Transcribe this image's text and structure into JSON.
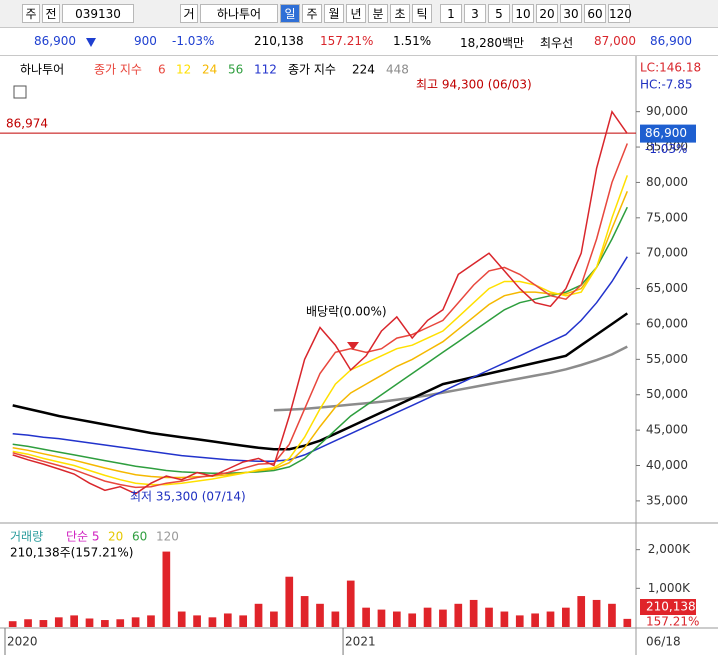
{
  "toolbar": {
    "items": [
      "주",
      "전",
      "039130",
      "거",
      "하나투어",
      "일",
      "주",
      "월",
      "년",
      "분",
      "초",
      "틱",
      "1",
      "3",
      "5",
      "10",
      "20",
      "30",
      "60",
      "120"
    ]
  },
  "quote": {
    "price": "86,900",
    "change": "900",
    "change_pct": "-1.03%",
    "volume": "210,138",
    "volume_ratio": "157.21%",
    "turnover": "1.51%",
    "amount": "18,280백만",
    "best_label": "최우선",
    "ask": "87,000",
    "bid": "86,900"
  },
  "chart_data": [
    {
      "type": "line",
      "categories": [
        "2020",
        null,
        null,
        null,
        null,
        null,
        null,
        null,
        null,
        null,
        null,
        null,
        null,
        null,
        null,
        null,
        null,
        null,
        null,
        null,
        null,
        null,
        "2021",
        null,
        null,
        null,
        null,
        null,
        null,
        null,
        null,
        null,
        null,
        null,
        null,
        null,
        null,
        null,
        null,
        null,
        null
      ],
      "ylim": [
        32300,
        97300
      ],
      "yticks": [
        {
          "value": 35000,
          "label": "35,000"
        },
        {
          "value": 40000,
          "label": "40,000"
        },
        {
          "value": 45000,
          "label": "45,000"
        },
        {
          "value": 50000,
          "label": "50,000"
        },
        {
          "value": 55000,
          "label": "55,000"
        },
        {
          "value": 60000,
          "label": "60,000"
        },
        {
          "value": 65000,
          "label": "65,000"
        },
        {
          "value": 70000,
          "label": "70,000"
        },
        {
          "value": 75000,
          "label": "75,000"
        },
        {
          "value": 80000,
          "label": "80,000"
        },
        {
          "value": 85000,
          "label": "85,000"
        },
        {
          "value": 90000,
          "label": "90,000"
        }
      ],
      "series": [
        {
          "name": "하나투어",
          "color": "#d9262c",
          "values": [
            41500,
            40800,
            40200,
            39500,
            38800,
            37500,
            36500,
            37000,
            36000,
            37500,
            38500,
            38000,
            39000,
            38500,
            39500,
            40500,
            41000,
            40000,
            47000,
            55000,
            59500,
            57000,
            53500,
            55500,
            59000,
            61000,
            58000,
            60500,
            62000,
            67000,
            68500,
            70000,
            67500,
            65000,
            63000,
            62500,
            65000,
            70000,
            82000,
            90000,
            86900
          ]
        },
        {
          "name": "6",
          "prefix": "종가 지수",
          "color": "#e8473d",
          "values": [
            41800,
            41200,
            40600,
            40000,
            39400,
            38600,
            37800,
            37300,
            36900,
            37000,
            37500,
            37800,
            38300,
            38600,
            39000,
            39600,
            40200,
            40300,
            43000,
            48000,
            53000,
            56000,
            56500,
            56000,
            56500,
            58000,
            58500,
            59500,
            60500,
            63000,
            65500,
            67500,
            68000,
            67000,
            65500,
            64000,
            63500,
            65500,
            72000,
            80000,
            85500
          ]
        },
        {
          "name": "12",
          "color": "#ffe000",
          "values": [
            42000,
            41600,
            41000,
            40500,
            40000,
            39300,
            38600,
            38000,
            37500,
            37300,
            37300,
            37500,
            37800,
            38100,
            38500,
            38900,
            39400,
            39700,
            41000,
            44000,
            48000,
            51500,
            53500,
            54500,
            55500,
            56500,
            57000,
            58000,
            59000,
            61000,
            63000,
            65000,
            66000,
            66000,
            65500,
            64500,
            64000,
            64500,
            68000,
            75000,
            81000
          ]
        },
        {
          "name": "24",
          "color": "#f5b800",
          "values": [
            42500,
            42150,
            41650,
            41200,
            40750,
            40200,
            39650,
            39150,
            38700,
            38450,
            38300,
            38300,
            38400,
            38500,
            38700,
            38950,
            39250,
            39500,
            40400,
            42500,
            45500,
            48250,
            50250,
            51500,
            52750,
            54000,
            55000,
            56250,
            57500,
            59250,
            61000,
            62750,
            64000,
            64500,
            64500,
            64250,
            64250,
            65000,
            68000,
            73500,
            78750
          ]
        },
        {
          "name": "56",
          "color": "#2e9e3e",
          "values": [
            43000,
            42700,
            42300,
            41900,
            41500,
            41100,
            40700,
            40300,
            39900,
            39600,
            39300,
            39100,
            39000,
            38900,
            38900,
            39000,
            39100,
            39300,
            39800,
            41000,
            43000,
            45000,
            47000,
            48500,
            50000,
            51500,
            53000,
            54500,
            56000,
            57500,
            59000,
            60500,
            62000,
            63000,
            63500,
            64000,
            64500,
            65500,
            68000,
            72000,
            76500
          ]
        },
        {
          "name": "112",
          "color": "#2233cc",
          "values": [
            44500,
            44300,
            44000,
            43800,
            43500,
            43200,
            42900,
            42600,
            42300,
            42000,
            41700,
            41400,
            41200,
            41000,
            40800,
            40700,
            40600,
            40600,
            40800,
            41500,
            42500,
            43500,
            44500,
            45500,
            46500,
            47500,
            48500,
            49500,
            50500,
            51500,
            52500,
            53500,
            54500,
            55500,
            56500,
            57500,
            58500,
            60500,
            63000,
            66000,
            69500
          ]
        },
        {
          "name": "224",
          "prefix": "종가 지수",
          "color": "#000000",
          "values": [
            48500,
            48000,
            47500,
            47000,
            46600,
            46200,
            45800,
            45400,
            45000,
            44600,
            44300,
            44000,
            43700,
            43400,
            43100,
            42800,
            42500,
            42300,
            42300,
            42800,
            43500,
            44500,
            45500,
            46500,
            47500,
            48500,
            49500,
            50500,
            51500,
            52000,
            52500,
            53000,
            53500,
            54000,
            54500,
            55000,
            55500,
            57000,
            58500,
            60000,
            61500
          ]
        },
        {
          "name": "448",
          "color": "#8c8c8c",
          "values": [
            null,
            null,
            null,
            null,
            null,
            null,
            null,
            null,
            null,
            null,
            null,
            null,
            null,
            null,
            null,
            null,
            null,
            47800,
            47900,
            48000,
            48200,
            48400,
            48600,
            48800,
            49000,
            49300,
            49600,
            49900,
            50300,
            50700,
            51100,
            51500,
            51900,
            52300,
            52700,
            53100,
            53600,
            54200,
            54900,
            55700,
            56800
          ]
        }
      ],
      "annotations": [
        "최고 94,300 (06/03)",
        "최저 35,300 (07/14)",
        "배당락(0.00%)"
      ],
      "ref_line": {
        "value": 86974,
        "label": "86,974"
      },
      "last_price": {
        "value": 86900,
        "label": "86,900"
      },
      "last_change": "-1.03%",
      "axis_notes": [
        "LC:146.18",
        "HC:-7.85"
      ]
    },
    {
      "type": "bar",
      "ylim": [
        0,
        2560000
      ],
      "yticks": [
        {
          "value": 1000000,
          "label": "1,000K"
        },
        {
          "value": 2000000,
          "label": "2,000K"
        }
      ],
      "series": [
        {
          "name": "거래량",
          "color": "#e0242a",
          "values": [
            150000,
            200000,
            180000,
            250000,
            300000,
            220000,
            180000,
            200000,
            250000,
            300000,
            1950000,
            400000,
            300000,
            250000,
            350000,
            300000,
            600000,
            400000,
            1300000,
            800000,
            600000,
            400000,
            1200000,
            500000,
            450000,
            400000,
            350000,
            500000,
            450000,
            600000,
            700000,
            500000,
            400000,
            300000,
            350000,
            400000,
            500000,
            800000,
            700000,
            600000,
            210138
          ]
        }
      ],
      "ma_legend": [
        {
          "label": "단순 5",
          "color": "#d020c0"
        },
        {
          "label": "20",
          "color": "#e6c800"
        },
        {
          "label": "60",
          "color": "#2e9e3e"
        },
        {
          "label": "120",
          "color": "#999999"
        }
      ],
      "summary": "210,138주(157.21%)",
      "last_volume": "210,138",
      "last_ratio": "157.21%",
      "date_label": "06/18"
    }
  ]
}
